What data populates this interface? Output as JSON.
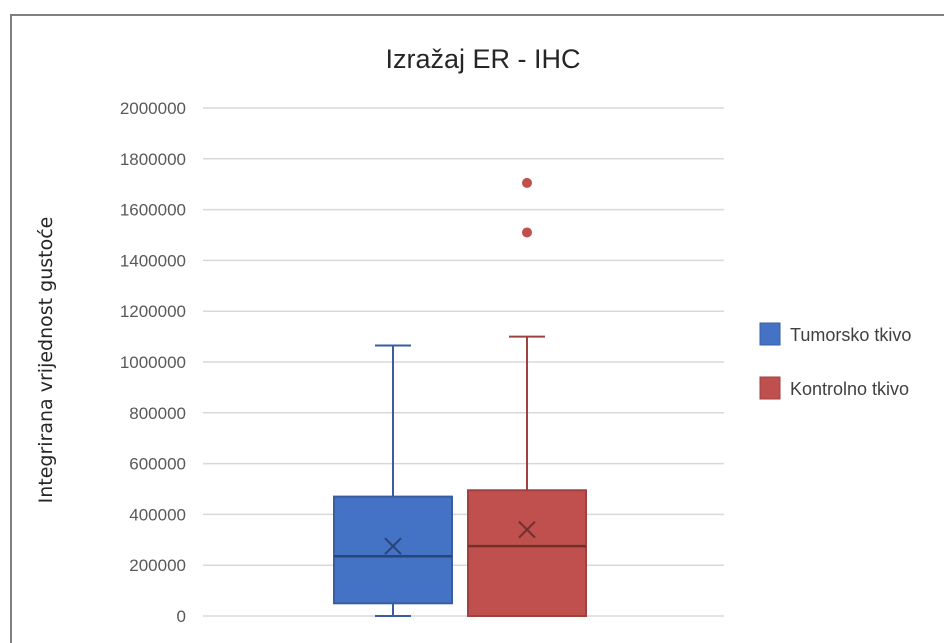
{
  "chart_data": {
    "type": "boxplot",
    "title": "Izražaj ER - IHC",
    "xlabel": "",
    "ylabel": "Integrirana vrijednost gustoće",
    "ylim": [
      0,
      2000000
    ],
    "yticks": [
      0,
      200000,
      400000,
      600000,
      800000,
      1000000,
      1200000,
      1400000,
      1600000,
      1800000,
      2000000
    ],
    "ytick_labels": [
      "0",
      "200000",
      "400000",
      "600000",
      "800000",
      "1000000",
      "1200000",
      "1400000",
      "1600000",
      "1800000",
      "2000000"
    ],
    "grid": true,
    "legend_position": "right",
    "series": [
      {
        "name": "Tumorsko tkivo",
        "color": "#4472c4",
        "min": 0,
        "q1": 50000,
        "median": 235000,
        "q3": 470000,
        "max": 1065000,
        "mean": 275000,
        "outliers": []
      },
      {
        "name": "Kontrolno tkivo",
        "color": "#c0504d",
        "min": 0,
        "q1": 0,
        "median": 275000,
        "q3": 495000,
        "max": 1100000,
        "mean": 340000,
        "outliers": [
          1510000,
          1705000
        ]
      }
    ]
  }
}
